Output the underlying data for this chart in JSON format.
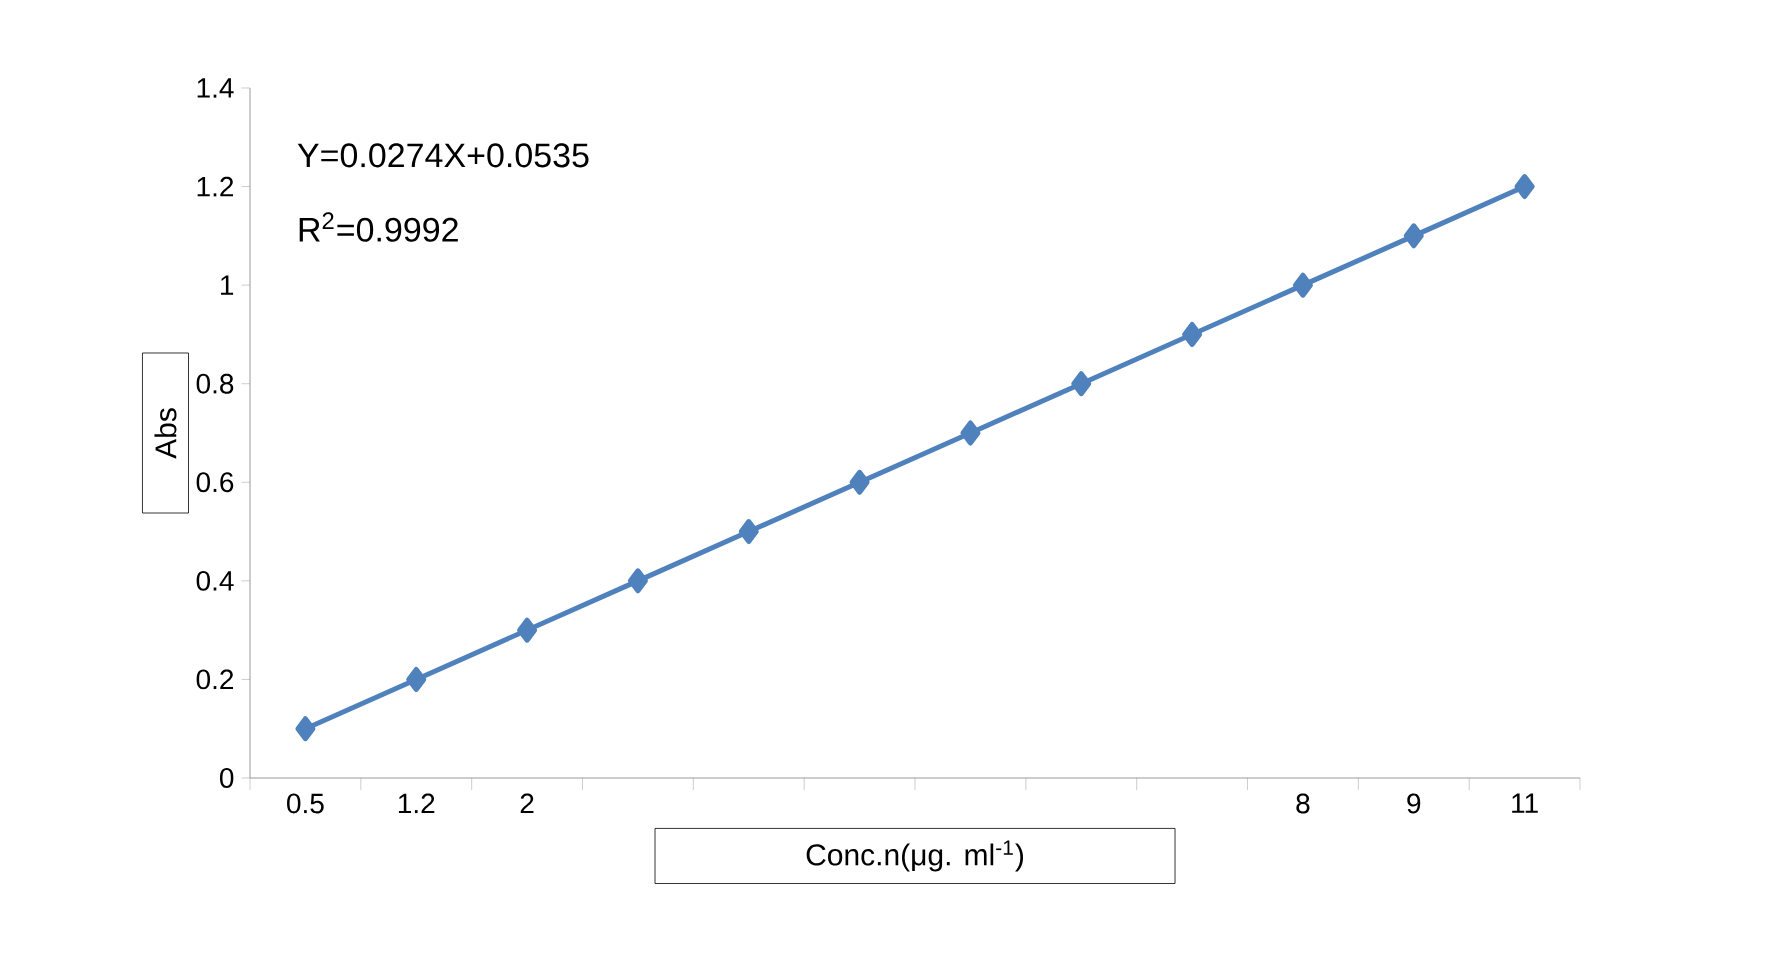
{
  "chart_data": {
    "type": "line",
    "xlabel": "Conc.n(μg. ml$^{-1}$)",
    "ylabel": "Abs",
    "annotations": [
      "Y=0.0274X+0.0535",
      "R$^{2}$=0.9992"
    ],
    "categories": [
      "0.5",
      "1.2",
      "2",
      null,
      null,
      null,
      null,
      null,
      null,
      "8",
      "9",
      "11"
    ],
    "series": [
      {
        "color": "#4f81bd",
        "values": [
          0.1,
          0.2,
          0.3,
          0.4,
          0.5,
          0.6,
          0.7,
          0.8,
          0.9,
          1.0,
          1.1,
          1.2
        ]
      }
    ],
    "ylim": [
      0,
      1.4
    ],
    "yticks": [
      0,
      0.2,
      0.4,
      0.6,
      0.8,
      1,
      1.2,
      1.4
    ],
    "marker": "diamond",
    "line_style": "solid"
  }
}
